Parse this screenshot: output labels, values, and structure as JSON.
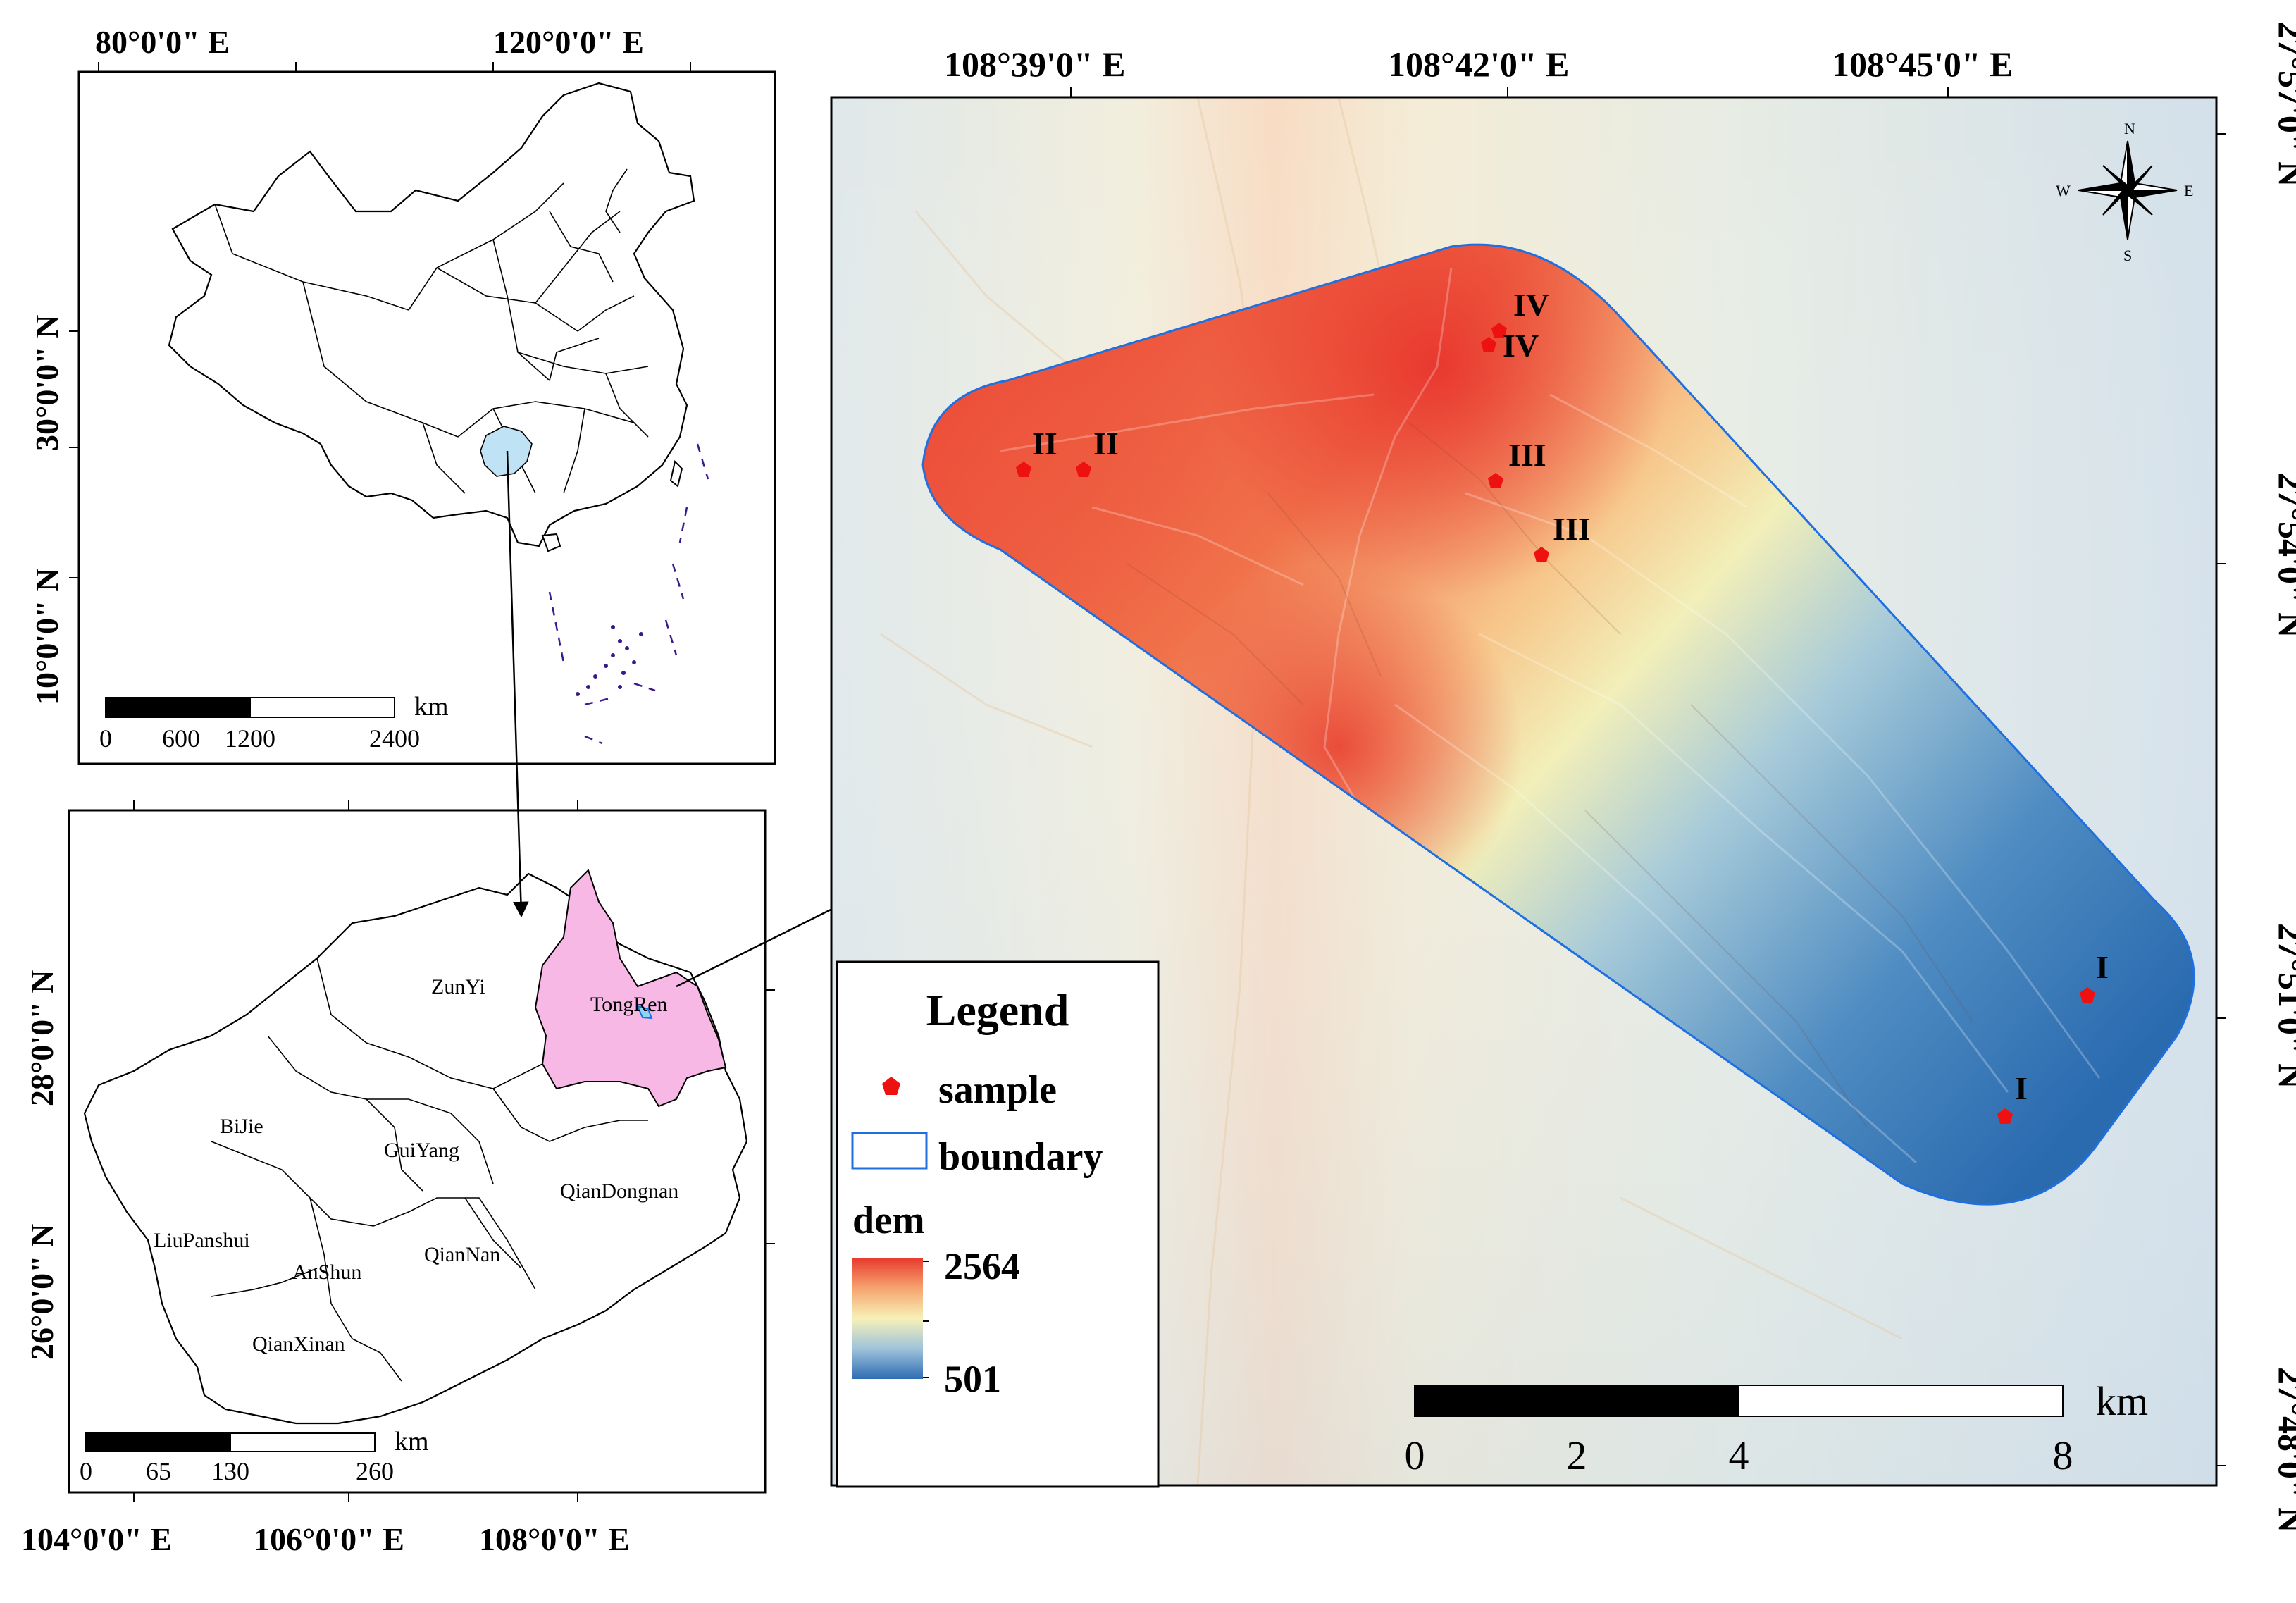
{
  "china_inset": {
    "top_lon_labels": [
      "80°0'0\" E",
      "120°0'0\" E"
    ],
    "left_lat_labels": [
      "30°0'0\" N",
      "10°0'0\" N"
    ],
    "scale": {
      "ticks": [
        "0",
        "600",
        "1200",
        "2400"
      ],
      "unit": "km"
    },
    "highlight_color": "#bfe3f5"
  },
  "guizhou_inset": {
    "prefectures": [
      "ZunYi",
      "TongRen",
      "BiJie",
      "GuiYang",
      "QianDongnan",
      "LiuPanshui",
      "AnShun",
      "QianNan",
      "QianXinan"
    ],
    "highlight_prefecture": "TongRen",
    "highlight_color": "#f7b8e6",
    "bottom_lon_labels": [
      "104°0'0\" E",
      "106°0'0\" E",
      "108°0'0\" E"
    ],
    "left_lat_labels": [
      "28°0'0\" N",
      "26°0'0\" N"
    ],
    "scale": {
      "ticks": [
        "0",
        "65",
        "130",
        "260"
      ],
      "unit": "km"
    }
  },
  "main_map": {
    "top_lon_labels": [
      "108°39'0\" E",
      "108°42'0\" E",
      "108°45'0\" E"
    ],
    "right_lat_labels": [
      "27°57'0\" N",
      "27°54'0\" N",
      "27°51'0\" N",
      "27°48'0\" N"
    ],
    "samples": [
      {
        "site": "IV",
        "label": "IV"
      },
      {
        "site": "IV",
        "label": "IV"
      },
      {
        "site": "II",
        "label": "II"
      },
      {
        "site": "II",
        "label": "II"
      },
      {
        "site": "III",
        "label": "III"
      },
      {
        "site": "III",
        "label": "III"
      },
      {
        "site": "I",
        "label": "I"
      },
      {
        "site": "I",
        "label": "I"
      }
    ],
    "north_arrow": {
      "n": "N",
      "s": "S",
      "e": "E",
      "w": "W"
    },
    "scale": {
      "ticks": [
        "0",
        "2",
        "4",
        "8"
      ],
      "unit": "km"
    },
    "boundary_color": "#1f6fe0",
    "sample_color": "#ee1111"
  },
  "legend": {
    "title": "Legend",
    "sample_label": "sample",
    "boundary_label": "boundary",
    "dem_label": "dem",
    "dem_max": "2564",
    "dem_min": "501",
    "ramp_colors": [
      "#e8392e",
      "#f6a36e",
      "#f7f1b8",
      "#9fc3da",
      "#2f6db3"
    ]
  }
}
